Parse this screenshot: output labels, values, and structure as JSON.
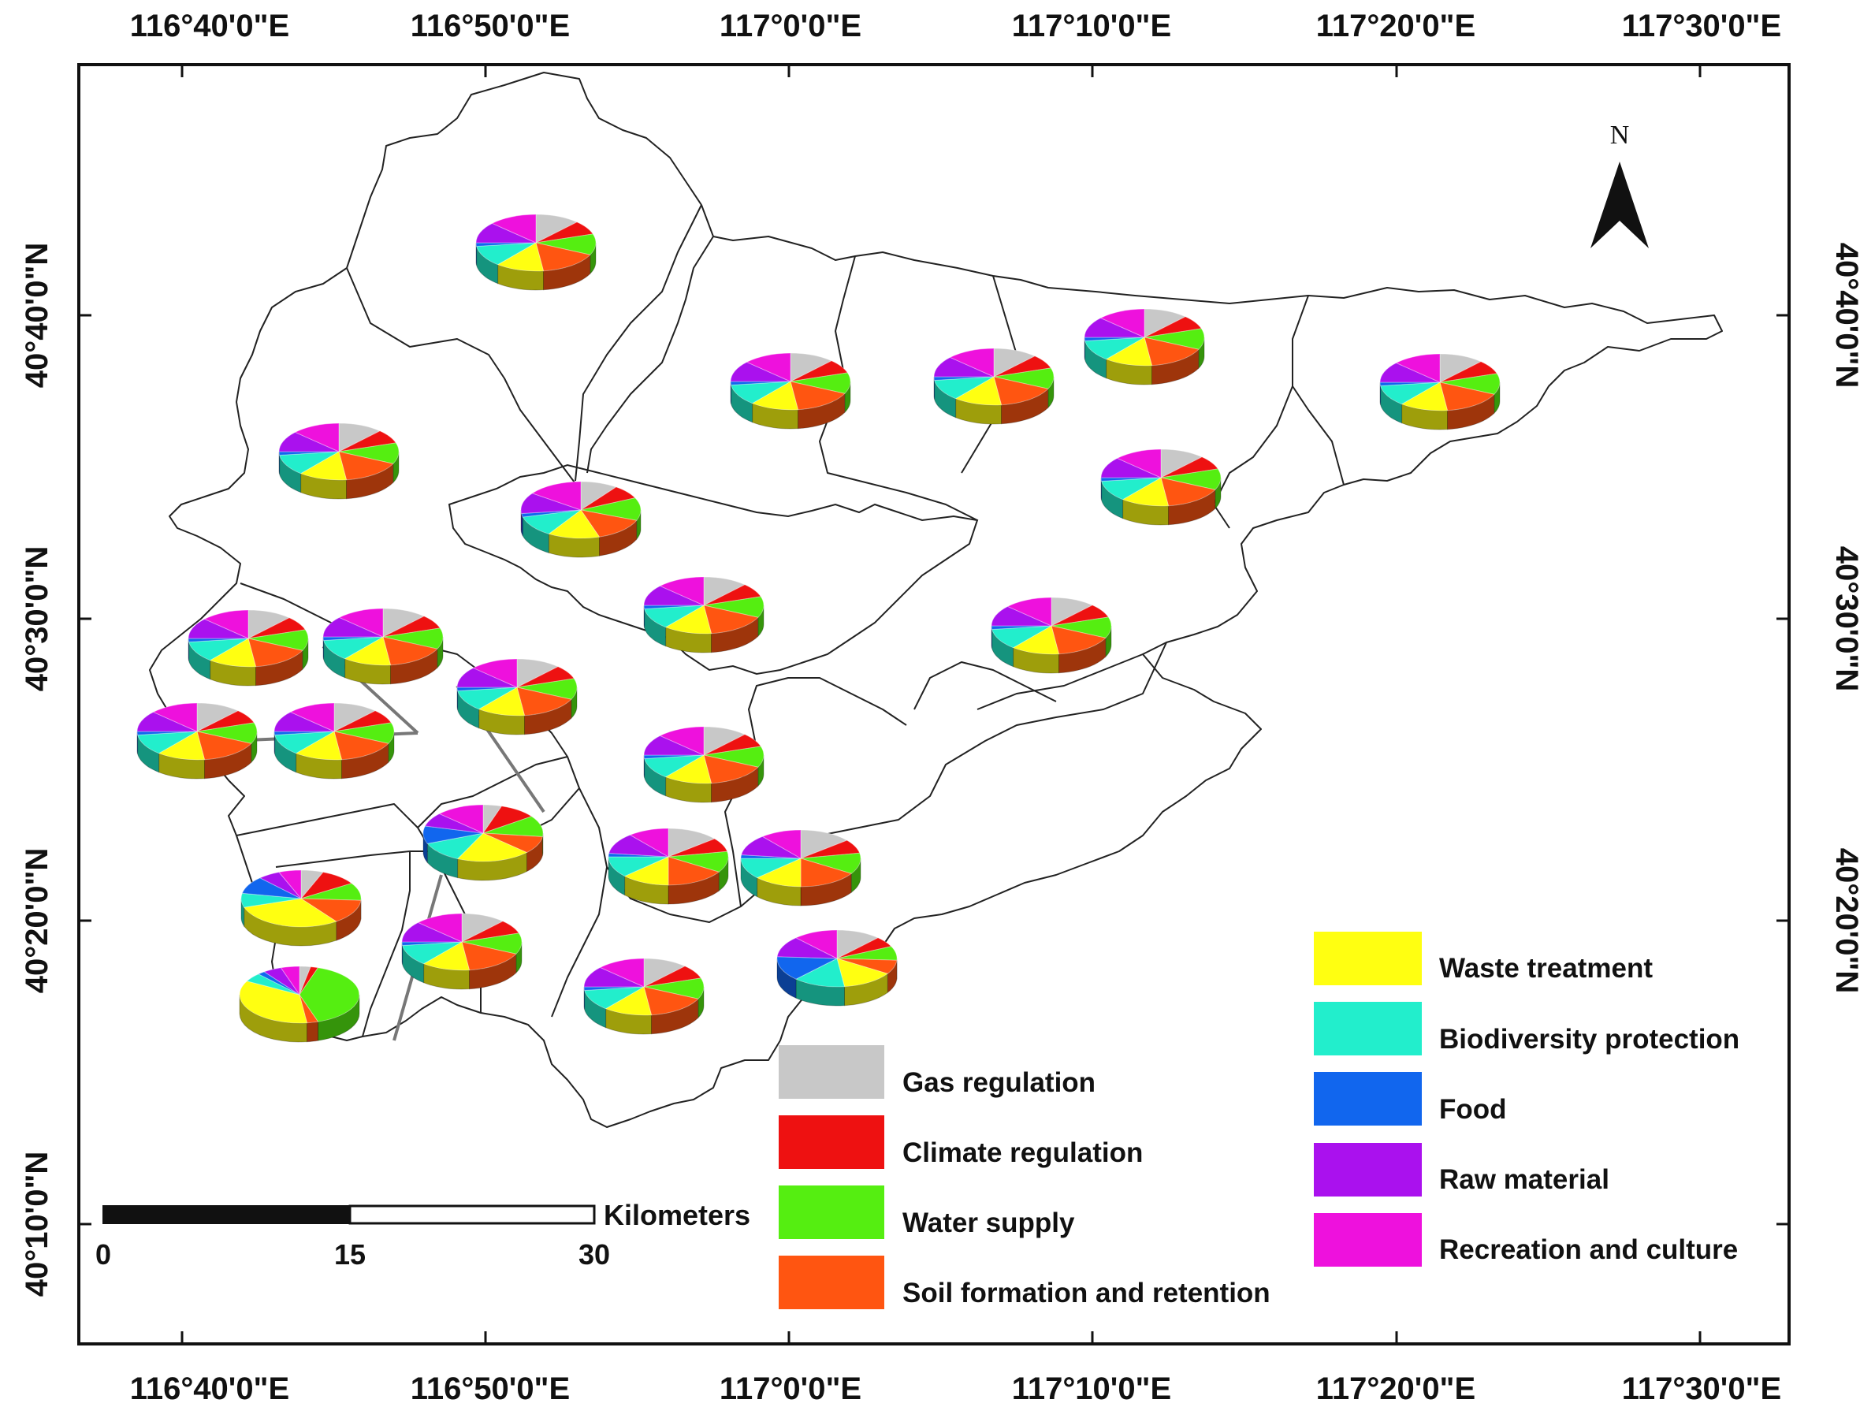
{
  "map": {
    "top_ticks": [
      "116°40'0\"E",
      "116°50'0\"E",
      "117°0'0\"E",
      "117°10'0\"E",
      "117°20'0\"E",
      "117°30'0\"E"
    ],
    "bottom_ticks": [
      "116°40'0\"E",
      "116°50'0\"E",
      "117°0'0\"E",
      "117°10'0\"E",
      "117°20'0\"E",
      "117°30'0\"E"
    ],
    "left_ticks": [
      "40°40'0\"N",
      "40°30'0\"N",
      "40°20'0\"N",
      "40°10'0\"N"
    ],
    "right_ticks": [
      "40°40'0\"N",
      "40°30'0\"N",
      "40°20'0\"N"
    ],
    "north_label": "N",
    "scale_bar": {
      "unit": "Kilometers",
      "labels": [
        "0",
        "15",
        "30"
      ]
    }
  },
  "legend": {
    "left": [
      {
        "label": "Gas regulation",
        "color": "#c8c8c8"
      },
      {
        "label": "Climate regulation",
        "color": "#ee1111"
      },
      {
        "label": "Water supply",
        "color": "#55ee11"
      },
      {
        "label": "Soil formation and retention",
        "color": "#ff5511"
      }
    ],
    "right": [
      {
        "label": "Waste treatment",
        "color": "#ffff11"
      },
      {
        "label": "Biodiversity protection",
        "color": "#22eecc"
      },
      {
        "label": "Food",
        "color": "#1166ee"
      },
      {
        "label": "Raw material",
        "color": "#aa11ee"
      },
      {
        "label": "Recreation and culture",
        "color": "#ee11dd"
      }
    ]
  },
  "pie_categories": [
    "Gas regulation",
    "Climate regulation",
    "Water supply",
    "Soil formation and retention",
    "Waste treatment",
    "Biodiversity protection",
    "Food",
    "Raw material",
    "Recreation and culture"
  ],
  "pie_colors": [
    "#c8c8c8",
    "#ee1111",
    "#55ee11",
    "#ff5511",
    "#ffff11",
    "#22eecc",
    "#1166ee",
    "#aa11ee",
    "#ee11dd"
  ],
  "chart_data": {
    "type": "pie",
    "categories": [
      "Gas regulation",
      "Climate regulation",
      "Water supply",
      "Soil formation and retention",
      "Waste treatment",
      "Biodiversity protection",
      "Food",
      "Raw material",
      "Recreation and culture"
    ],
    "series": [
      {
        "values": [
          12,
          8,
          12,
          16,
          13,
          12,
          2,
          12,
          13
        ]
      },
      {
        "values": [
          12,
          8,
          12,
          16,
          13,
          12,
          2,
          12,
          13
        ]
      },
      {
        "values": [
          12,
          8,
          12,
          16,
          13,
          12,
          2,
          12,
          13
        ]
      },
      {
        "values": [
          12,
          8,
          12,
          16,
          13,
          12,
          2,
          12,
          13
        ]
      },
      {
        "values": [
          12,
          8,
          12,
          16,
          13,
          12,
          2,
          12,
          13
        ]
      },
      {
        "values": [
          12,
          8,
          12,
          16,
          13,
          12,
          2,
          12,
          13
        ]
      },
      {
        "values": [
          10,
          8,
          13,
          14,
          14,
          12,
          2,
          12,
          15
        ]
      },
      {
        "values": [
          12,
          8,
          12,
          16,
          13,
          12,
          2,
          12,
          13
        ]
      },
      {
        "values": [
          12,
          8,
          12,
          16,
          13,
          12,
          2,
          12,
          13
        ]
      },
      {
        "values": [
          12,
          8,
          12,
          16,
          13,
          12,
          2,
          12,
          13
        ]
      },
      {
        "values": [
          12,
          8,
          12,
          16,
          13,
          12,
          2,
          12,
          13
        ]
      },
      {
        "values": [
          12,
          8,
          12,
          16,
          13,
          12,
          2,
          12,
          13
        ]
      },
      {
        "values": [
          12,
          8,
          12,
          16,
          13,
          12,
          2,
          12,
          13
        ]
      },
      {
        "values": [
          12,
          8,
          12,
          16,
          13,
          12,
          2,
          12,
          13
        ]
      },
      {
        "values": [
          12,
          8,
          12,
          16,
          13,
          12,
          2,
          12,
          13
        ]
      },
      {
        "values": [
          12,
          8,
          12,
          16,
          13,
          12,
          2,
          12,
          13
        ]
      },
      {
        "values": [
          5,
          10,
          12,
          10,
          20,
          12,
          10,
          8,
          13
        ]
      },
      {
        "values": [
          14,
          8,
          12,
          16,
          13,
          12,
          2,
          12,
          11
        ]
      },
      {
        "values": [
          14,
          8,
          12,
          16,
          13,
          12,
          2,
          12,
          11
        ]
      },
      {
        "values": [
          6,
          10,
          10,
          14,
          30,
          8,
          10,
          6,
          6
        ]
      },
      {
        "values": [
          12,
          8,
          12,
          16,
          13,
          12,
          2,
          12,
          13
        ]
      },
      {
        "values": [
          12,
          6,
          8,
          8,
          14,
          14,
          14,
          12,
          12
        ]
      },
      {
        "values": [
          12,
          8,
          12,
          16,
          13,
          12,
          2,
          12,
          13
        ]
      },
      {
        "values": [
          3,
          2,
          40,
          3,
          35,
          5,
          2,
          5,
          5
        ]
      }
    ]
  }
}
